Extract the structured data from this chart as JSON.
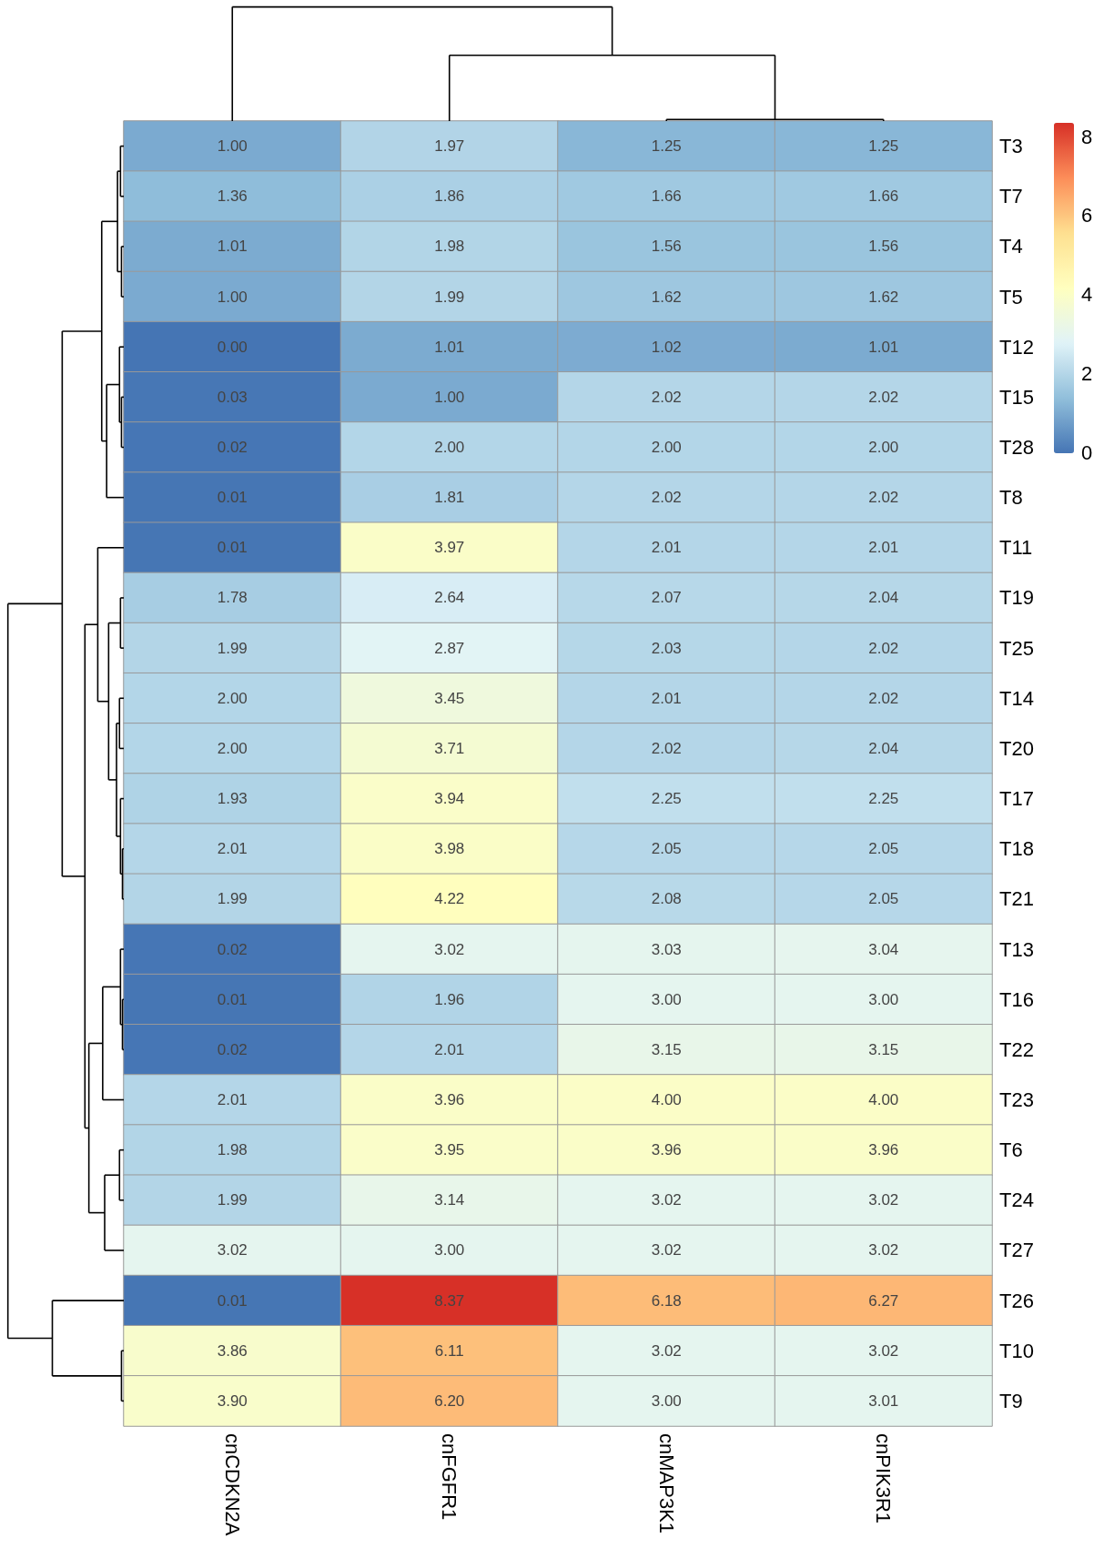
{
  "chart_data": {
    "type": "heatmap",
    "categories": [
      "cnCDKN2A",
      "cnFGFR1",
      "cnMAP3K1",
      "cnPIK3R1"
    ],
    "y_categories": [
      "T3",
      "T7",
      "T4",
      "T5",
      "T12",
      "T15",
      "T28",
      "T8",
      "T11",
      "T19",
      "T25",
      "T14",
      "T20",
      "T17",
      "T18",
      "T21",
      "T13",
      "T16",
      "T22",
      "T23",
      "T6",
      "T24",
      "T27",
      "T26",
      "T10",
      "T9"
    ],
    "cells": [
      [
        1.0,
        1.97,
        1.25,
        1.25
      ],
      [
        1.36,
        1.86,
        1.66,
        1.66
      ],
      [
        1.01,
        1.98,
        1.56,
        1.56
      ],
      [
        1.0,
        1.99,
        1.62,
        1.62
      ],
      [
        0.0,
        1.01,
        1.02,
        1.01
      ],
      [
        0.03,
        1.0,
        2.02,
        2.02
      ],
      [
        0.02,
        2.0,
        2.0,
        2.0
      ],
      [
        0.01,
        1.81,
        2.02,
        2.02
      ],
      [
        0.01,
        3.97,
        2.01,
        2.01
      ],
      [
        1.78,
        2.64,
        2.07,
        2.04
      ],
      [
        1.99,
        2.87,
        2.03,
        2.02
      ],
      [
        2.0,
        3.45,
        2.01,
        2.02
      ],
      [
        2.0,
        3.71,
        2.02,
        2.04
      ],
      [
        1.93,
        3.94,
        2.25,
        2.25
      ],
      [
        2.01,
        3.98,
        2.05,
        2.05
      ],
      [
        1.99,
        4.22,
        2.08,
        2.05
      ],
      [
        0.02,
        3.02,
        3.03,
        3.04
      ],
      [
        0.01,
        1.96,
        3.0,
        3.0
      ],
      [
        0.02,
        2.01,
        3.15,
        3.15
      ],
      [
        2.01,
        3.96,
        4.0,
        4.0
      ],
      [
        1.98,
        3.95,
        3.96,
        3.96
      ],
      [
        1.99,
        3.14,
        3.02,
        3.02
      ],
      [
        3.02,
        3.0,
        3.02,
        3.02
      ],
      [
        0.01,
        8.37,
        6.18,
        6.27
      ],
      [
        3.86,
        6.11,
        3.02,
        3.02
      ],
      [
        3.9,
        6.2,
        3.0,
        3.01
      ]
    ],
    "cell_labels": [
      [
        "1.00",
        "1.97",
        "1.25",
        "1.25"
      ],
      [
        "1.36",
        "1.86",
        "1.66",
        "1.66"
      ],
      [
        "1.01",
        "1.98",
        "1.56",
        "1.56"
      ],
      [
        "1.00",
        "1.99",
        "1.62",
        "1.62"
      ],
      [
        "0.00",
        "1.01",
        "1.02",
        "1.01"
      ],
      [
        "0.03",
        "1.00",
        "2.02",
        "2.02"
      ],
      [
        "0.02",
        "2.00",
        "2.00",
        "2.00"
      ],
      [
        "0.01",
        "1.81",
        "2.02",
        "2.02"
      ],
      [
        "0.01",
        "3.97",
        "2.01",
        "2.01"
      ],
      [
        "1.78",
        "2.64",
        "2.07",
        "2.04"
      ],
      [
        "1.99",
        "2.87",
        "2.03",
        "2.02"
      ],
      [
        "2.00",
        "3.45",
        "2.01",
        "2.02"
      ],
      [
        "2.00",
        "3.71",
        "2.02",
        "2.04"
      ],
      [
        "1.93",
        "3.94",
        "2.25",
        "2.25"
      ],
      [
        "2.01",
        "3.98",
        "2.05",
        "2.05"
      ],
      [
        "1.99",
        "4.22",
        "2.08",
        "2.05"
      ],
      [
        "0.02",
        "3.02",
        "3.03",
        "3.04"
      ],
      [
        "0.01",
        "1.96",
        "3.00",
        "3.00"
      ],
      [
        "0.02",
        "2.01",
        "3.15",
        "3.15"
      ],
      [
        "2.01",
        "3.96",
        "4.00",
        "4.00"
      ],
      [
        "1.98",
        "3.95",
        "3.96",
        "3.96"
      ],
      [
        "1.99",
        "3.14",
        "3.02",
        "3.02"
      ],
      [
        "3.02",
        "3.00",
        "3.02",
        "3.02"
      ],
      [
        "0.01",
        "8.37",
        "6.18",
        "6.27"
      ],
      [
        "3.86",
        "6.11",
        "3.02",
        "3.02"
      ],
      [
        "3.90",
        "6.20",
        "3.00",
        "3.01"
      ]
    ],
    "clim": [
      0,
      8.37
    ],
    "cticks": [
      0,
      2,
      4,
      6,
      8
    ]
  }
}
